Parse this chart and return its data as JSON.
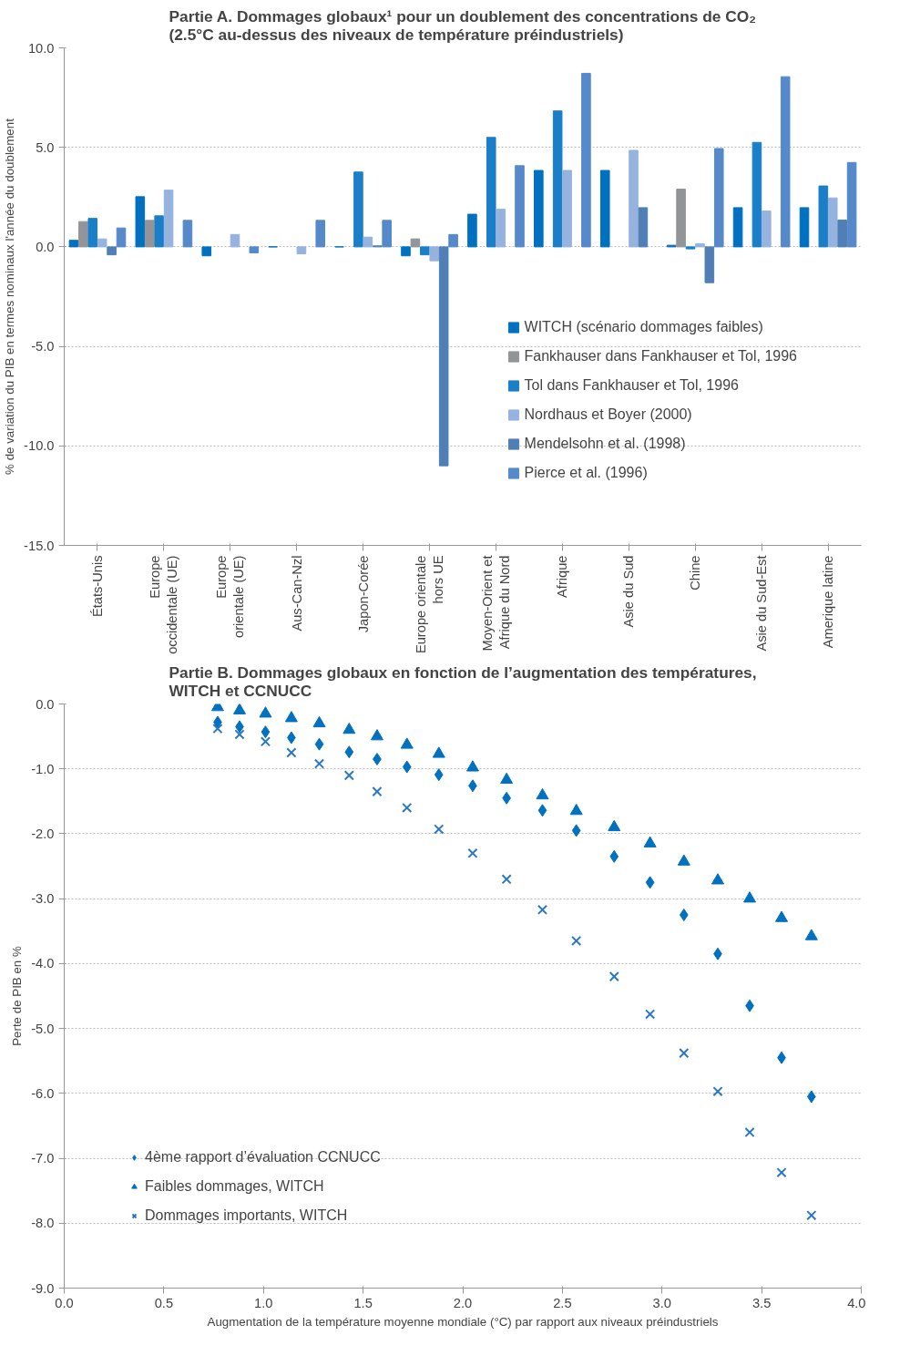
{
  "chart_data": [
    {
      "type": "bar",
      "title": "Partie A. Dommages globaux¹ pour un doublement des concentrations de CO₂\n(2.5°C au-dessus des niveaux de température préindustriels)",
      "ylabel": "% de variation du PIB en termes nominaux l'année du doublement",
      "categories": [
        "États-Unis",
        "Europe\noccidentale (UE)",
        "Europe\norientale (UE)",
        "Aus-Can-Nzl",
        "Japon-Corée",
        "Europe orientale\nhors UE",
        "Moyen-Orient et\nAfrique du Nord",
        "Afrique",
        "Asie du Sud",
        "Chine",
        "Asie du Sud-Est",
        "Amerique latine"
      ],
      "series": [
        {
          "name": "WITCH (scénario dommages faibles)",
          "color": "#0070c0",
          "values": [
            0.33,
            2.52,
            -0.45,
            0,
            0,
            -0.45,
            1.64,
            3.84,
            3.84,
            0.08,
            1.97,
            1.97
          ]
        },
        {
          "name": "Fankhauser dans Fankhauser et Tol, 1996",
          "color": "#929497",
          "values": [
            1.27,
            1.33,
            null,
            null,
            null,
            0.4,
            null,
            null,
            null,
            2.9,
            null,
            null
          ]
        },
        {
          "name": "Tol dans Fankhauser et Tol, 1996",
          "color": "#1a7fc8",
          "values": [
            1.43,
            1.56,
            null,
            null,
            3.76,
            -0.4,
            5.5,
            6.83,
            null,
            -0.1,
            5.25,
            3.06
          ]
        },
        {
          "name": "Nordhaus et Boyer (2000)",
          "color": "#95b3de",
          "values": [
            0.4,
            2.85,
            0.62,
            -0.35,
            0.49,
            -0.7,
            1.89,
            3.84,
            4.85,
            0.16,
            1.8,
            2.46
          ]
        },
        {
          "name": "Mendelsohn et al. (1998)",
          "color": "#4f7fb5",
          "values": [
            -0.4,
            null,
            null,
            null,
            0.05,
            -11.0,
            null,
            null,
            1.97,
            -1.8,
            null,
            1.35
          ]
        },
        {
          "name": "Pierce et al. (1996)",
          "color": "#5589c9",
          "values": [
            0.95,
            1.33,
            -0.3,
            1.33,
            1.33,
            0.62,
            4.08,
            8.72,
            null,
            4.94,
            8.55,
            4.24
          ]
        }
      ],
      "ylim": [
        -15,
        10
      ],
      "yticks": [
        {
          "value": -15,
          "label": "-15.0"
        },
        {
          "value": -10,
          "label": "-10.0"
        },
        {
          "value": -5,
          "label": "-5.0"
        },
        {
          "value": 0,
          "label": "0.0"
        },
        {
          "value": 5,
          "label": "5.0"
        },
        {
          "value": 10,
          "label": "10.0"
        }
      ],
      "grid": "y",
      "legend": "right"
    },
    {
      "type": "scatter",
      "title": "Partie B. Dommages globaux en fonction de l’augmentation des températures,\nWITCH et CCNUCC",
      "ylabel": "Perte de PIB en %",
      "xlabel": "Augmentation de la température moyenne mondiale (°C) par rapport aux niveaux préindustriels",
      "x": [
        0.77,
        0.88,
        1.01,
        1.14,
        1.28,
        1.43,
        1.57,
        1.72,
        1.88,
        2.05,
        2.22,
        2.4,
        2.57,
        2.76,
        2.94,
        3.11,
        3.28,
        3.44,
        3.6,
        3.75
      ],
      "series": [
        {
          "name": "4ème rapport d’évaluation CCNUCC",
          "color": "#0070c0",
          "marker": "diamond",
          "values": [
            -0.28,
            -0.35,
            -0.43,
            -0.52,
            -0.62,
            -0.74,
            -0.85,
            -0.97,
            -1.09,
            -1.26,
            -1.45,
            -1.64,
            -1.95,
            -2.35,
            -2.75,
            -3.25,
            -3.85,
            -4.65,
            -5.45,
            -6.05
          ]
        },
        {
          "name": "Faibles dommages, WITCH",
          "color": "#0070c0",
          "marker": "triangle",
          "values": [
            -0.05,
            -0.1,
            -0.15,
            -0.22,
            -0.3,
            -0.4,
            -0.5,
            -0.63,
            -0.77,
            -0.98,
            -1.17,
            -1.41,
            -1.65,
            -1.9,
            -2.15,
            -2.43,
            -2.72,
            -3.0,
            -3.3,
            -3.58
          ]
        },
        {
          "name": "Dommages importants, WITCH",
          "color": "#2a78c2",
          "marker": "cross",
          "values": [
            -0.38,
            -0.47,
            -0.58,
            -0.75,
            -0.92,
            -1.1,
            -1.35,
            -1.6,
            -1.93,
            -2.3,
            -2.7,
            -3.17,
            -3.65,
            -4.2,
            -4.78,
            -5.38,
            -5.97,
            -6.6,
            -7.22,
            -7.88
          ]
        }
      ],
      "xlim": [
        0,
        4
      ],
      "xticks": [
        {
          "value": 0,
          "label": "0.0"
        },
        {
          "value": 0.5,
          "label": "0.5"
        },
        {
          "value": 1,
          "label": "1.0"
        },
        {
          "value": 1.5,
          "label": "1.5"
        },
        {
          "value": 2,
          "label": "2.0"
        },
        {
          "value": 2.5,
          "label": "2.5"
        },
        {
          "value": 3,
          "label": "3.0"
        },
        {
          "value": 3.5,
          "label": "3.5"
        },
        {
          "value": 4,
          "label": "4.0"
        }
      ],
      "ylim": [
        -9,
        0
      ],
      "yticks": [
        {
          "value": 0,
          "label": "0.0"
        },
        {
          "value": -1,
          "label": "-1.0"
        },
        {
          "value": -2,
          "label": "-2.0"
        },
        {
          "value": -3,
          "label": "-3.0"
        },
        {
          "value": -4,
          "label": "-4.0"
        },
        {
          "value": -5,
          "label": "-5.0"
        },
        {
          "value": -6,
          "label": "-6.0"
        },
        {
          "value": -7,
          "label": "-7.0"
        },
        {
          "value": -8,
          "label": "-8.0"
        },
        {
          "value": -9,
          "label": "-9.0"
        }
      ],
      "grid": "y",
      "legend": "left"
    }
  ]
}
